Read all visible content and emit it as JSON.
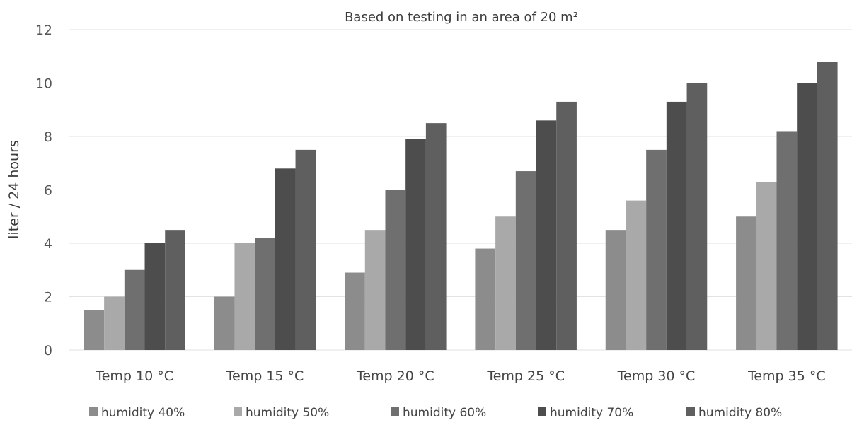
{
  "chart_data": {
    "type": "bar",
    "title": "",
    "subtitle": "Based on testing in an area of 20 m²",
    "xlabel": "",
    "ylabel": "liter / 24 hours",
    "ylim": [
      0,
      12
    ],
    "yticks": [
      "0",
      "2",
      "4",
      "6",
      "8",
      "10",
      "12"
    ],
    "grid": true,
    "legend_position": "bottom",
    "categories": [
      "Temp 10 °C",
      "Temp 15 °C",
      "Temp 20 °C",
      "Temp 25 °C",
      "Temp 30 °C",
      "Temp 35 °C"
    ],
    "series": [
      {
        "name": "humidity 40%",
        "color": "#8c8c8c",
        "values": [
          1.5,
          2.0,
          2.9,
          3.8,
          4.5,
          5.0
        ]
      },
      {
        "name": "humidity 50%",
        "color": "#a9a9a9",
        "values": [
          2.0,
          4.0,
          4.5,
          5.0,
          5.6,
          6.3
        ]
      },
      {
        "name": "humidity 60%",
        "color": "#6f6f6f",
        "values": [
          3.0,
          4.2,
          6.0,
          6.7,
          7.5,
          8.2
        ]
      },
      {
        "name": "humidity 70%",
        "color": "#4d4d4d",
        "values": [
          4.0,
          6.8,
          7.9,
          8.6,
          9.3,
          10.0
        ]
      },
      {
        "name": "humidity 80%",
        "color": "#5f5f5f",
        "values": [
          4.5,
          7.5,
          8.5,
          9.3,
          10.0,
          10.8
        ]
      }
    ]
  }
}
